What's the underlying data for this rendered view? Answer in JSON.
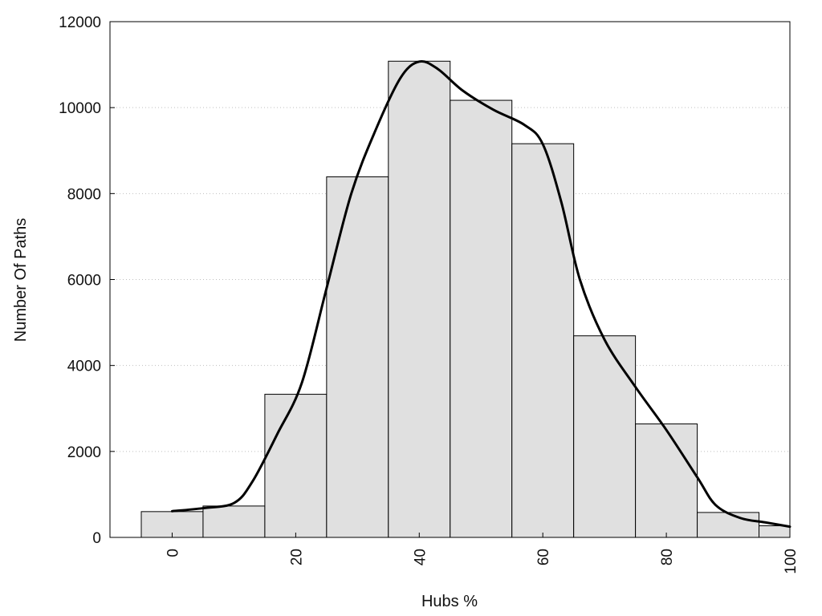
{
  "chart_data": {
    "type": "bar",
    "title": "",
    "xlabel": "Hubs %",
    "ylabel": "Number Of Paths",
    "xlim": [
      -10,
      100
    ],
    "ylim": [
      0,
      12000
    ],
    "x_ticks": [
      0,
      20,
      40,
      60,
      80,
      100
    ],
    "y_ticks": [
      0,
      2000,
      4000,
      6000,
      8000,
      10000,
      12000
    ],
    "grid": "horizontal dotted",
    "bar_width": 10,
    "bar_color": "#e0e0e0",
    "curve_color": "#000000",
    "bars": [
      {
        "x": 0,
        "value": 600
      },
      {
        "x": 10,
        "value": 730
      },
      {
        "x": 20,
        "value": 3330
      },
      {
        "x": 30,
        "value": 8390
      },
      {
        "x": 40,
        "value": 11080
      },
      {
        "x": 50,
        "value": 10170
      },
      {
        "x": 60,
        "value": 9160
      },
      {
        "x": 70,
        "value": 4690
      },
      {
        "x": 80,
        "value": 2640
      },
      {
        "x": 90,
        "value": 580
      },
      {
        "x": 100,
        "value": 270
      }
    ],
    "curve": [
      {
        "x": 0,
        "y": 610
      },
      {
        "x": 5,
        "y": 680
      },
      {
        "x": 10,
        "y": 800
      },
      {
        "x": 13,
        "y": 1300
      },
      {
        "x": 17,
        "y": 2400
      },
      {
        "x": 21,
        "y": 3600
      },
      {
        "x": 25,
        "y": 5800
      },
      {
        "x": 29,
        "y": 8000
      },
      {
        "x": 33,
        "y": 9500
      },
      {
        "x": 37,
        "y": 10700
      },
      {
        "x": 40,
        "y": 11070
      },
      {
        "x": 43,
        "y": 10900
      },
      {
        "x": 47,
        "y": 10400
      },
      {
        "x": 52,
        "y": 9950
      },
      {
        "x": 57,
        "y": 9600
      },
      {
        "x": 60,
        "y": 9150
      },
      {
        "x": 63,
        "y": 7800
      },
      {
        "x": 66,
        "y": 6000
      },
      {
        "x": 70,
        "y": 4600
      },
      {
        "x": 75,
        "y": 3500
      },
      {
        "x": 80,
        "y": 2500
      },
      {
        "x": 85,
        "y": 1400
      },
      {
        "x": 88,
        "y": 750
      },
      {
        "x": 92,
        "y": 450
      },
      {
        "x": 96,
        "y": 350
      },
      {
        "x": 100,
        "y": 250
      }
    ]
  }
}
